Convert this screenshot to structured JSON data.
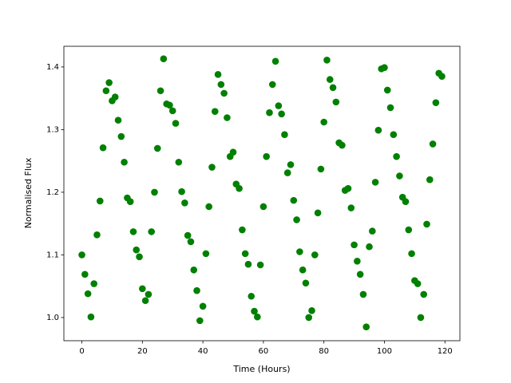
{
  "chart_data": {
    "type": "scatter",
    "x_label": "Time (Hours)",
    "y_label": "Normalised Flux",
    "xlim": [
      -5.95,
      124.95
    ],
    "ylim": [
      0.963,
      1.433
    ],
    "xticks": [
      0,
      20,
      40,
      60,
      80,
      100,
      120
    ],
    "yticks": [
      {
        "value": 1,
        "label": "1.0"
      },
      1.1,
      1.2,
      1.3,
      1.4
    ],
    "grid": false,
    "series": [
      {
        "color": "#008000",
        "x": [
          0,
          1,
          2,
          3,
          4,
          5,
          6,
          7,
          8,
          9,
          10,
          11,
          12,
          13,
          14,
          15,
          16,
          17,
          18,
          19,
          20,
          21,
          22,
          23,
          24,
          25,
          26,
          27,
          28,
          29,
          30,
          31,
          32,
          33,
          34,
          35,
          36,
          37,
          38,
          39,
          40,
          41,
          42,
          43,
          44,
          45,
          46,
          47,
          48,
          49,
          50,
          51,
          52,
          53,
          54,
          55,
          56,
          57,
          58,
          59,
          60,
          61,
          62,
          63,
          64,
          65,
          66,
          67,
          68,
          69,
          70,
          71,
          72,
          73,
          74,
          75,
          76,
          77,
          78,
          79,
          80,
          81,
          82,
          83,
          84,
          85,
          86,
          87,
          88,
          89,
          90,
          91,
          92,
          93,
          94,
          95,
          96,
          97,
          98,
          99,
          100,
          101,
          102,
          103,
          104,
          105,
          106,
          107,
          108,
          109,
          110,
          111,
          112,
          113,
          114,
          115,
          116,
          117,
          118,
          119
        ],
        "values": [
          1.1,
          1.069,
          1.038,
          1.001,
          1.054,
          1.132,
          1.186,
          1.271,
          1.362,
          1.375,
          1.346,
          1.352,
          1.315,
          1.289,
          1.248,
          1.191,
          1.185,
          1.137,
          1.108,
          1.097,
          1.046,
          1.027,
          1.037,
          1.137,
          1.2,
          1.27,
          1.362,
          1.413,
          1.341,
          1.339,
          1.33,
          1.31,
          1.248,
          1.201,
          1.183,
          1.131,
          1.121,
          1.076,
          1.043,
          0.995,
          1.018,
          1.102,
          1.177,
          1.24,
          1.329,
          1.388,
          1.372,
          1.358,
          1.319,
          1.257,
          1.264,
          1.213,
          1.206,
          1.14,
          1.102,
          1.085,
          1.034,
          1.01,
          1.001,
          1.084,
          1.177,
          1.257,
          1.327,
          1.372,
          1.409,
          1.338,
          1.325,
          1.292,
          1.231,
          1.244,
          1.187,
          1.156,
          1.105,
          1.076,
          1.055,
          1.0,
          1.011,
          1.1,
          1.167,
          1.237,
          1.312,
          1.411,
          1.38,
          1.367,
          1.344,
          1.279,
          1.275,
          1.203,
          1.206,
          1.175,
          1.116,
          1.09,
          1.069,
          1.037,
          0.985,
          1.113,
          1.138,
          1.216,
          1.299,
          1.397,
          1.399,
          1.363,
          1.335,
          1.292,
          1.257,
          1.226,
          1.192,
          1.185,
          1.14,
          1.102,
          1.059,
          1.054,
          1.0,
          1.037,
          1.149,
          1.22,
          1.277,
          1.343,
          1.39,
          1.385
        ]
      }
    ]
  }
}
